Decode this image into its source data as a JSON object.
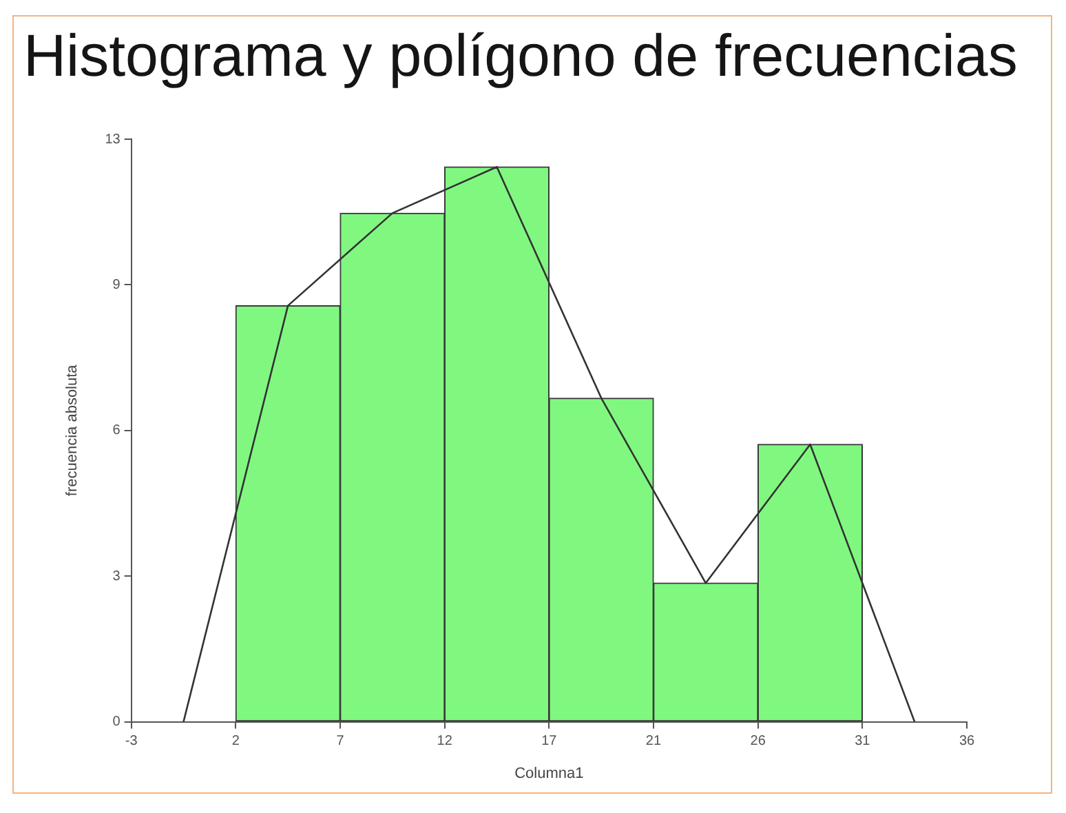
{
  "chart_data": {
    "type": "histogram",
    "title": "Histograma y polígono de frecuencias",
    "xlabel": "Columna1",
    "ylabel": "frecuencia absoluta",
    "bins": [
      2.2,
      7,
      11.8,
      16.6,
      21.4,
      26.2,
      31
    ],
    "series": [
      {
        "color": "#80f880",
        "values": [
          9,
          11,
          12,
          7,
          3,
          6
        ]
      },
      {
        "type": "line",
        "color": "#333333",
        "x": [
          -0.2,
          4.6,
          9.4,
          14.2,
          19,
          23.8,
          28.6,
          33.4
        ],
        "values": [
          0,
          9,
          11,
          12,
          7,
          3,
          6,
          0
        ]
      }
    ],
    "xlim": [
      -2.6,
      35.8
    ],
    "xticks": [
      {
        "value": -2.6,
        "label": "-3"
      },
      {
        "value": 2.2,
        "label": "2"
      },
      7,
      {
        "value": 11.8,
        "label": "12"
      },
      {
        "value": 16.6,
        "label": "17"
      },
      {
        "value": 21.4,
        "label": "21"
      },
      {
        "value": 26.2,
        "label": "26"
      },
      31,
      {
        "value": 35.8,
        "label": "36"
      }
    ],
    "ylim": [
      0,
      12.6
    ],
    "yticks": [
      0,
      {
        "value": 3.15,
        "label": "3"
      },
      {
        "value": 6.3,
        "label": "6"
      },
      {
        "value": 9.45,
        "label": "9"
      },
      {
        "value": 12.6,
        "label": "13"
      }
    ]
  }
}
